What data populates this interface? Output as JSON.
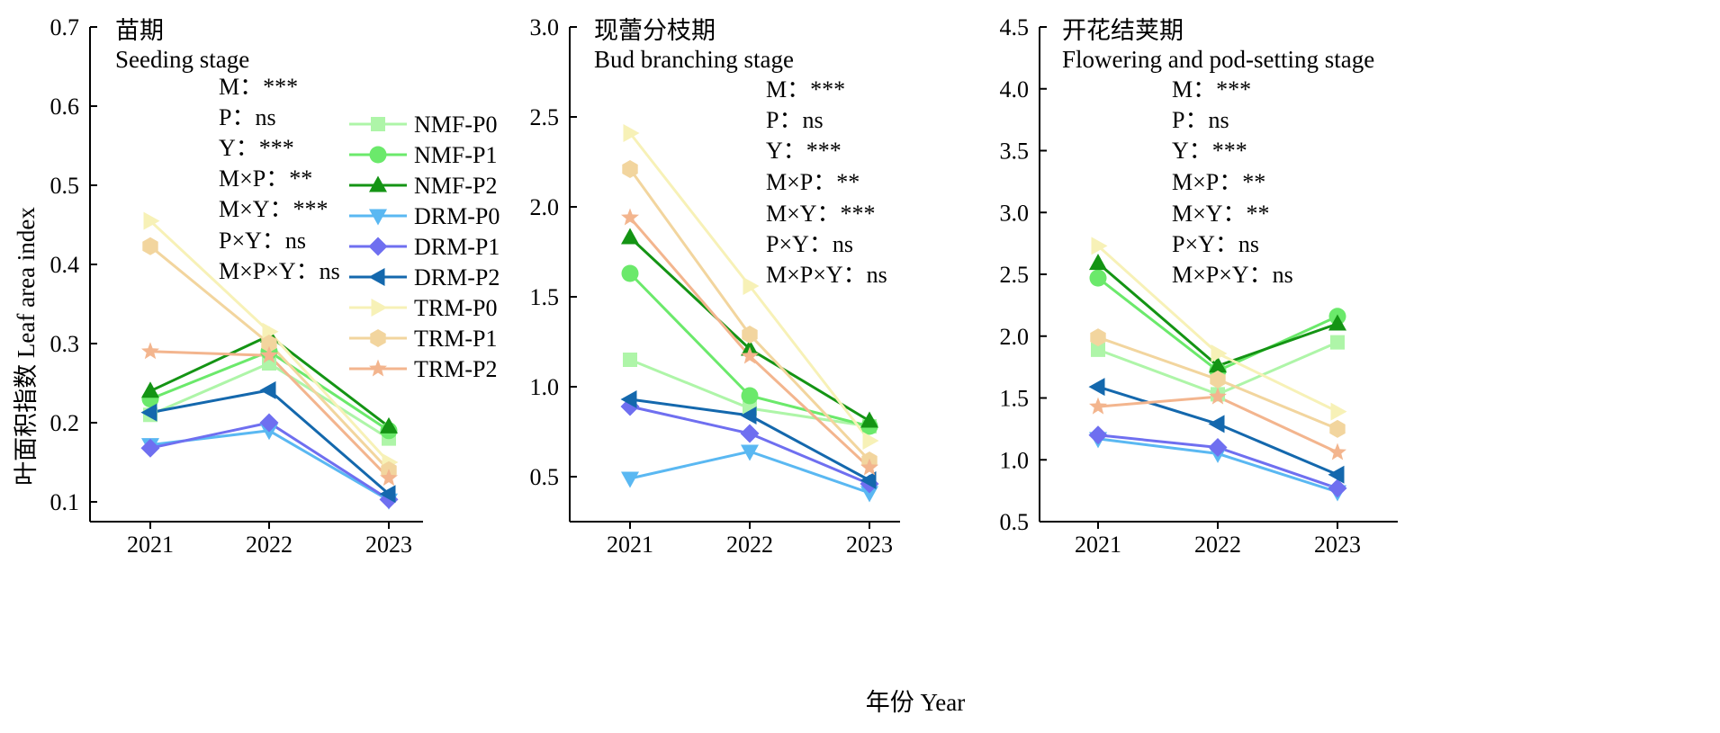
{
  "figure": {
    "ylabel": "叶面积指数 Leaf area index",
    "xlabel": "年份 Year"
  },
  "legend": [
    {
      "name": "NMF-P0",
      "color": "#aef5a8",
      "marker": "square"
    },
    {
      "name": "NMF-P1",
      "color": "#6be96b",
      "marker": "circle"
    },
    {
      "name": "NMF-P2",
      "color": "#149414",
      "marker": "triangle-up"
    },
    {
      "name": "DRM-P0",
      "color": "#5ab8f2",
      "marker": "triangle-down"
    },
    {
      "name": "DRM-P1",
      "color": "#6f6ff0",
      "marker": "diamond"
    },
    {
      "name": "DRM-P2",
      "color": "#1468ad",
      "marker": "triangle-left"
    },
    {
      "name": "TRM-P0",
      "color": "#f7f1b7",
      "marker": "triangle-right"
    },
    {
      "name": "TRM-P1",
      "color": "#f2d59e",
      "marker": "hexagon"
    },
    {
      "name": "TRM-P2",
      "color": "#f3b58e",
      "marker": "star"
    }
  ],
  "chart_data": [
    {
      "type": "line",
      "title_cn": "苗期",
      "title_en": "Seeding stage",
      "categories": [
        "2021",
        "2022",
        "2023"
      ],
      "ylim": [
        0.075,
        0.7
      ],
      "yticks": [
        0.1,
        0.2,
        0.3,
        0.4,
        0.5,
        0.6,
        0.7
      ],
      "ytick_labels": [
        "0.1",
        "0.2",
        "0.3",
        "0.4",
        "0.5",
        "0.6",
        "0.7"
      ],
      "stats": [
        "M：***",
        "P：ns",
        "Y：***",
        "M×P：**",
        "M×Y：***",
        "P×Y：ns",
        "M×P×Y：ns"
      ],
      "series": [
        {
          "name": "NMF-P0",
          "values": [
            0.21,
            0.275,
            0.18
          ]
        },
        {
          "name": "NMF-P1",
          "values": [
            0.23,
            0.29,
            0.19
          ]
        },
        {
          "name": "NMF-P2",
          "values": [
            0.24,
            0.31,
            0.195
          ]
        },
        {
          "name": "DRM-P0",
          "values": [
            0.172,
            0.19,
            0.102
          ]
        },
        {
          "name": "DRM-P1",
          "values": [
            0.168,
            0.2,
            0.103
          ]
        },
        {
          "name": "DRM-P2",
          "values": [
            0.213,
            0.241,
            0.11
          ]
        },
        {
          "name": "TRM-P0",
          "values": [
            0.455,
            0.315,
            0.15
          ]
        },
        {
          "name": "TRM-P1",
          "values": [
            0.423,
            0.3,
            0.14
          ]
        },
        {
          "name": "TRM-P2",
          "values": [
            0.29,
            0.285,
            0.13
          ]
        }
      ]
    },
    {
      "type": "line",
      "title_cn": "现蕾分枝期",
      "title_en": "Bud branching stage",
      "categories": [
        "2021",
        "2022",
        "2023"
      ],
      "ylim": [
        0.25,
        3.0
      ],
      "yticks": [
        0.5,
        1.0,
        1.5,
        2.0,
        2.5,
        3.0
      ],
      "ytick_labels": [
        "0.5",
        "1.0",
        "1.5",
        "2.0",
        "2.5",
        "3.0"
      ],
      "stats": [
        "M：***",
        "P：ns",
        "Y：***",
        "M×P：**",
        "M×Y：***",
        "P×Y：ns",
        "M×P×Y：ns"
      ],
      "series": [
        {
          "name": "NMF-P0",
          "values": [
            1.15,
            0.88,
            0.78
          ]
        },
        {
          "name": "NMF-P1",
          "values": [
            1.63,
            0.95,
            0.78
          ]
        },
        {
          "name": "NMF-P2",
          "values": [
            1.83,
            1.21,
            0.81
          ]
        },
        {
          "name": "DRM-P0",
          "values": [
            0.49,
            0.64,
            0.41
          ]
        },
        {
          "name": "DRM-P1",
          "values": [
            0.89,
            0.74,
            0.46
          ]
        },
        {
          "name": "DRM-P2",
          "values": [
            0.93,
            0.84,
            0.48
          ]
        },
        {
          "name": "TRM-P0",
          "values": [
            2.41,
            1.56,
            0.7
          ]
        },
        {
          "name": "TRM-P1",
          "values": [
            2.21,
            1.29,
            0.59
          ]
        },
        {
          "name": "TRM-P2",
          "values": [
            1.94,
            1.17,
            0.55
          ]
        }
      ]
    },
    {
      "type": "line",
      "title_cn": "开花结荚期",
      "title_en": "Flowering and pod-setting stage",
      "categories": [
        "2021",
        "2022",
        "2023"
      ],
      "ylim": [
        0.5,
        4.5
      ],
      "yticks": [
        0.5,
        1.0,
        1.5,
        2.0,
        2.5,
        3.0,
        3.5,
        4.0,
        4.5
      ],
      "ytick_labels": [
        "0.5",
        "1.0",
        "1.5",
        "2.0",
        "2.5",
        "3.0",
        "3.5",
        "4.0",
        "4.5"
      ],
      "stats": [
        "M：***",
        "P：ns",
        "Y：***",
        "M×P：**",
        "M×Y：**",
        "P×Y：ns",
        "M×P×Y：ns"
      ],
      "series": [
        {
          "name": "NMF-P0",
          "values": [
            1.89,
            1.53,
            1.95
          ]
        },
        {
          "name": "NMF-P1",
          "values": [
            2.47,
            1.72,
            2.16
          ]
        },
        {
          "name": "NMF-P2",
          "values": [
            2.59,
            1.76,
            2.1
          ]
        },
        {
          "name": "DRM-P0",
          "values": [
            1.17,
            1.05,
            0.74
          ]
        },
        {
          "name": "DRM-P1",
          "values": [
            1.2,
            1.1,
            0.77
          ]
        },
        {
          "name": "DRM-P2",
          "values": [
            1.59,
            1.29,
            0.88
          ]
        },
        {
          "name": "TRM-P0",
          "values": [
            2.73,
            1.86,
            1.39
          ]
        },
        {
          "name": "TRM-P1",
          "values": [
            1.99,
            1.65,
            1.25
          ]
        },
        {
          "name": "TRM-P2",
          "values": [
            1.43,
            1.51,
            1.06
          ]
        }
      ]
    }
  ]
}
